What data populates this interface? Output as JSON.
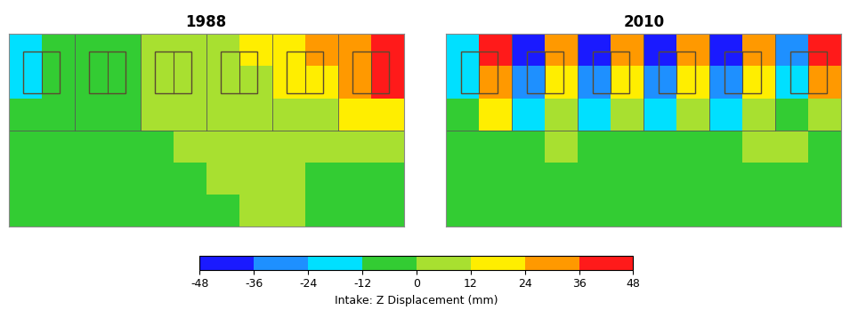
{
  "chart_data": [
    {
      "type": "heatmap",
      "title": "1988",
      "tick_labels": false,
      "cells": [
        [
          -18,
          -6,
          -6,
          -6,
          6,
          6,
          6,
          18,
          18,
          30,
          30,
          42
        ],
        [
          -18,
          -6,
          -6,
          -6,
          6,
          6,
          6,
          6,
          18,
          18,
          30,
          42
        ],
        [
          -6,
          -6,
          -6,
          -6,
          6,
          6,
          6,
          6,
          6,
          6,
          18,
          18
        ],
        [
          -6,
          -6,
          -6,
          -6,
          -6,
          6,
          6,
          6,
          6,
          6,
          6,
          6
        ],
        [
          -6,
          -6,
          -6,
          -6,
          -6,
          -6,
          6,
          6,
          6,
          -6,
          -6,
          -6
        ],
        [
          -6,
          -6,
          -6,
          -6,
          -6,
          -6,
          -6,
          6,
          6,
          -6,
          -6,
          -6
        ]
      ]
    },
    {
      "type": "heatmap",
      "title": "2010",
      "tick_labels": false,
      "cells": [
        [
          -18,
          42,
          -42,
          30,
          -42,
          30,
          -42,
          30,
          -42,
          30,
          -30,
          42
        ],
        [
          -18,
          30,
          -30,
          18,
          -30,
          18,
          -30,
          18,
          -30,
          18,
          -18,
          30
        ],
        [
          -6,
          18,
          -18,
          6,
          -18,
          6,
          -18,
          6,
          -18,
          6,
          -6,
          6
        ],
        [
          -6,
          -6,
          -6,
          6,
          -6,
          -6,
          -6,
          -6,
          -6,
          6,
          6,
          -6
        ],
        [
          -6,
          -6,
          -6,
          -6,
          -6,
          -6,
          -6,
          -6,
          -6,
          -6,
          -6,
          -6
        ],
        [
          -6,
          -6,
          -6,
          -6,
          -6,
          -6,
          -6,
          -6,
          -6,
          -6,
          -6,
          -6
        ]
      ]
    }
  ],
  "colorbar": {
    "label": "Intake: Z Displacement (mm)",
    "range": [
      -48,
      48
    ],
    "ticks": [
      -48,
      -36,
      -24,
      -12,
      0,
      12,
      24,
      36,
      48
    ],
    "colors": [
      "#1a1aff",
      "#1e90ff",
      "#00e0ff",
      "#33cc33",
      "#a8e030",
      "#ffee00",
      "#ff9900",
      "#ff1a1a"
    ]
  }
}
